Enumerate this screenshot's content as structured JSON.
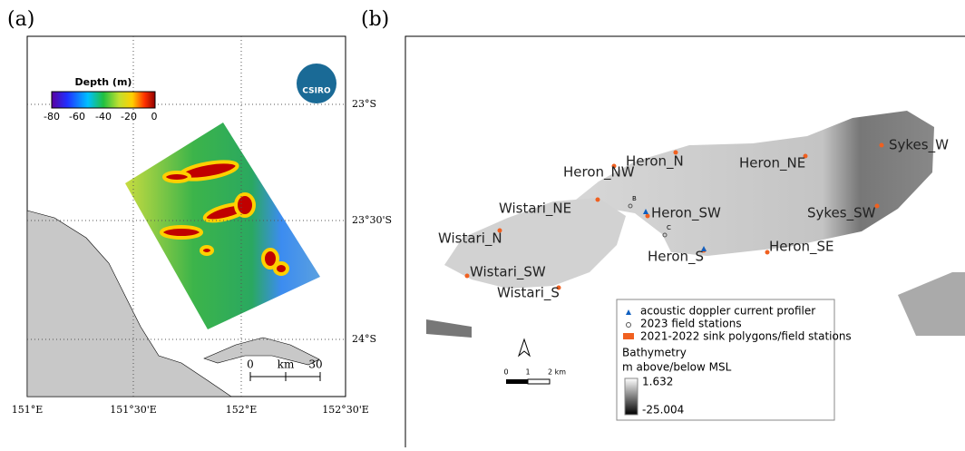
{
  "panel_a": {
    "label": "(a)",
    "colorbar": {
      "title": "Depth  (m)",
      "ticks": [
        -80,
        -60,
        -40,
        -20,
        0
      ]
    },
    "logo": "CSIRO",
    "lat_labels": [
      "23°S",
      "23°30'S",
      "24°S"
    ],
    "lon_labels": [
      "151°E",
      "151°30'E",
      "152°E",
      "152°30'E"
    ],
    "scale_bar": {
      "start": 0,
      "unit": "km",
      "end": 30
    }
  },
  "panel_b": {
    "label": "(b)",
    "stations": [
      "Heron_NW",
      "Heron_N",
      "Heron_NE",
      "Sykes_W",
      "Wistari_NE",
      "Heron_SW",
      "Sykes_SW",
      "Wistari_N",
      "Heron_S",
      "Heron_SE",
      "Wistari_SW",
      "Wistari_S"
    ],
    "markers": [
      "B",
      "C"
    ],
    "legend": {
      "items": [
        "acoustic doppler current profiler",
        "2023 field stations",
        "2021-2022 sink polygons/field stations"
      ],
      "bathymetry_title": "Bathymetry",
      "bathymetry_unit": "m above/below MSL",
      "max": 1.632,
      "min": -25.004
    },
    "scale_bar": {
      "ticks": [
        0,
        1
      ],
      "end_label": "2 km"
    }
  }
}
